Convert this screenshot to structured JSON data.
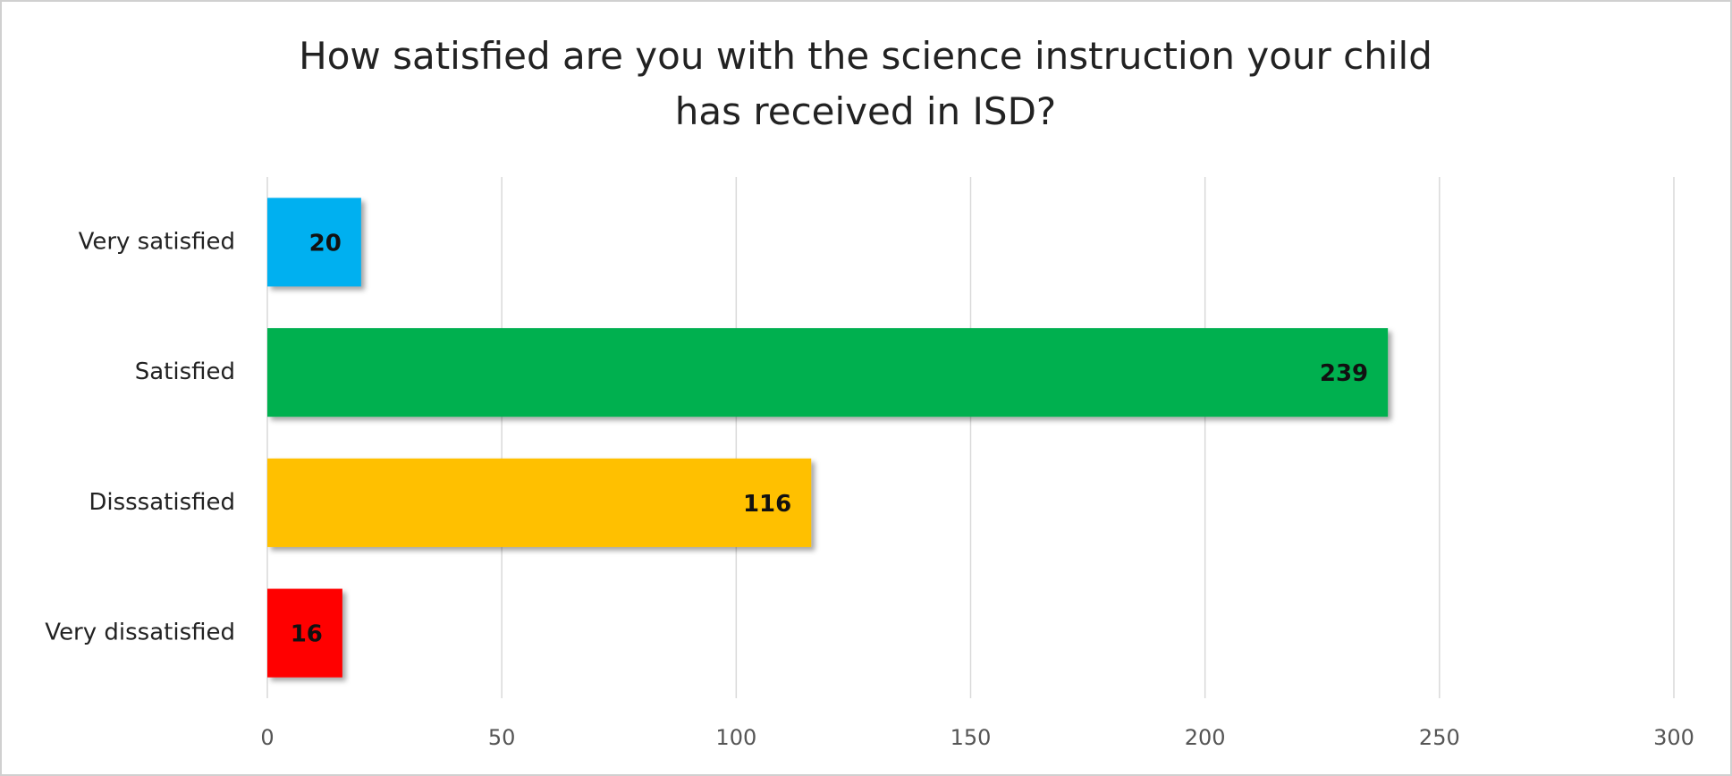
{
  "chart_data": {
    "type": "bar",
    "orientation": "horizontal",
    "title": "How satisfied are you with the science instruction your child has received in ISD?",
    "categories": [
      "Very satisfied",
      "Satisfied",
      "Disssatisfied",
      "Very dissatisfied"
    ],
    "values": [
      20,
      239,
      116,
      16
    ],
    "colors": [
      "#00b0f0",
      "#00b050",
      "#ffc000",
      "#ff0000"
    ],
    "xlim": [
      0,
      300
    ],
    "xticks": [
      0,
      50,
      100,
      150,
      200,
      250,
      300
    ],
    "grid": true
  }
}
